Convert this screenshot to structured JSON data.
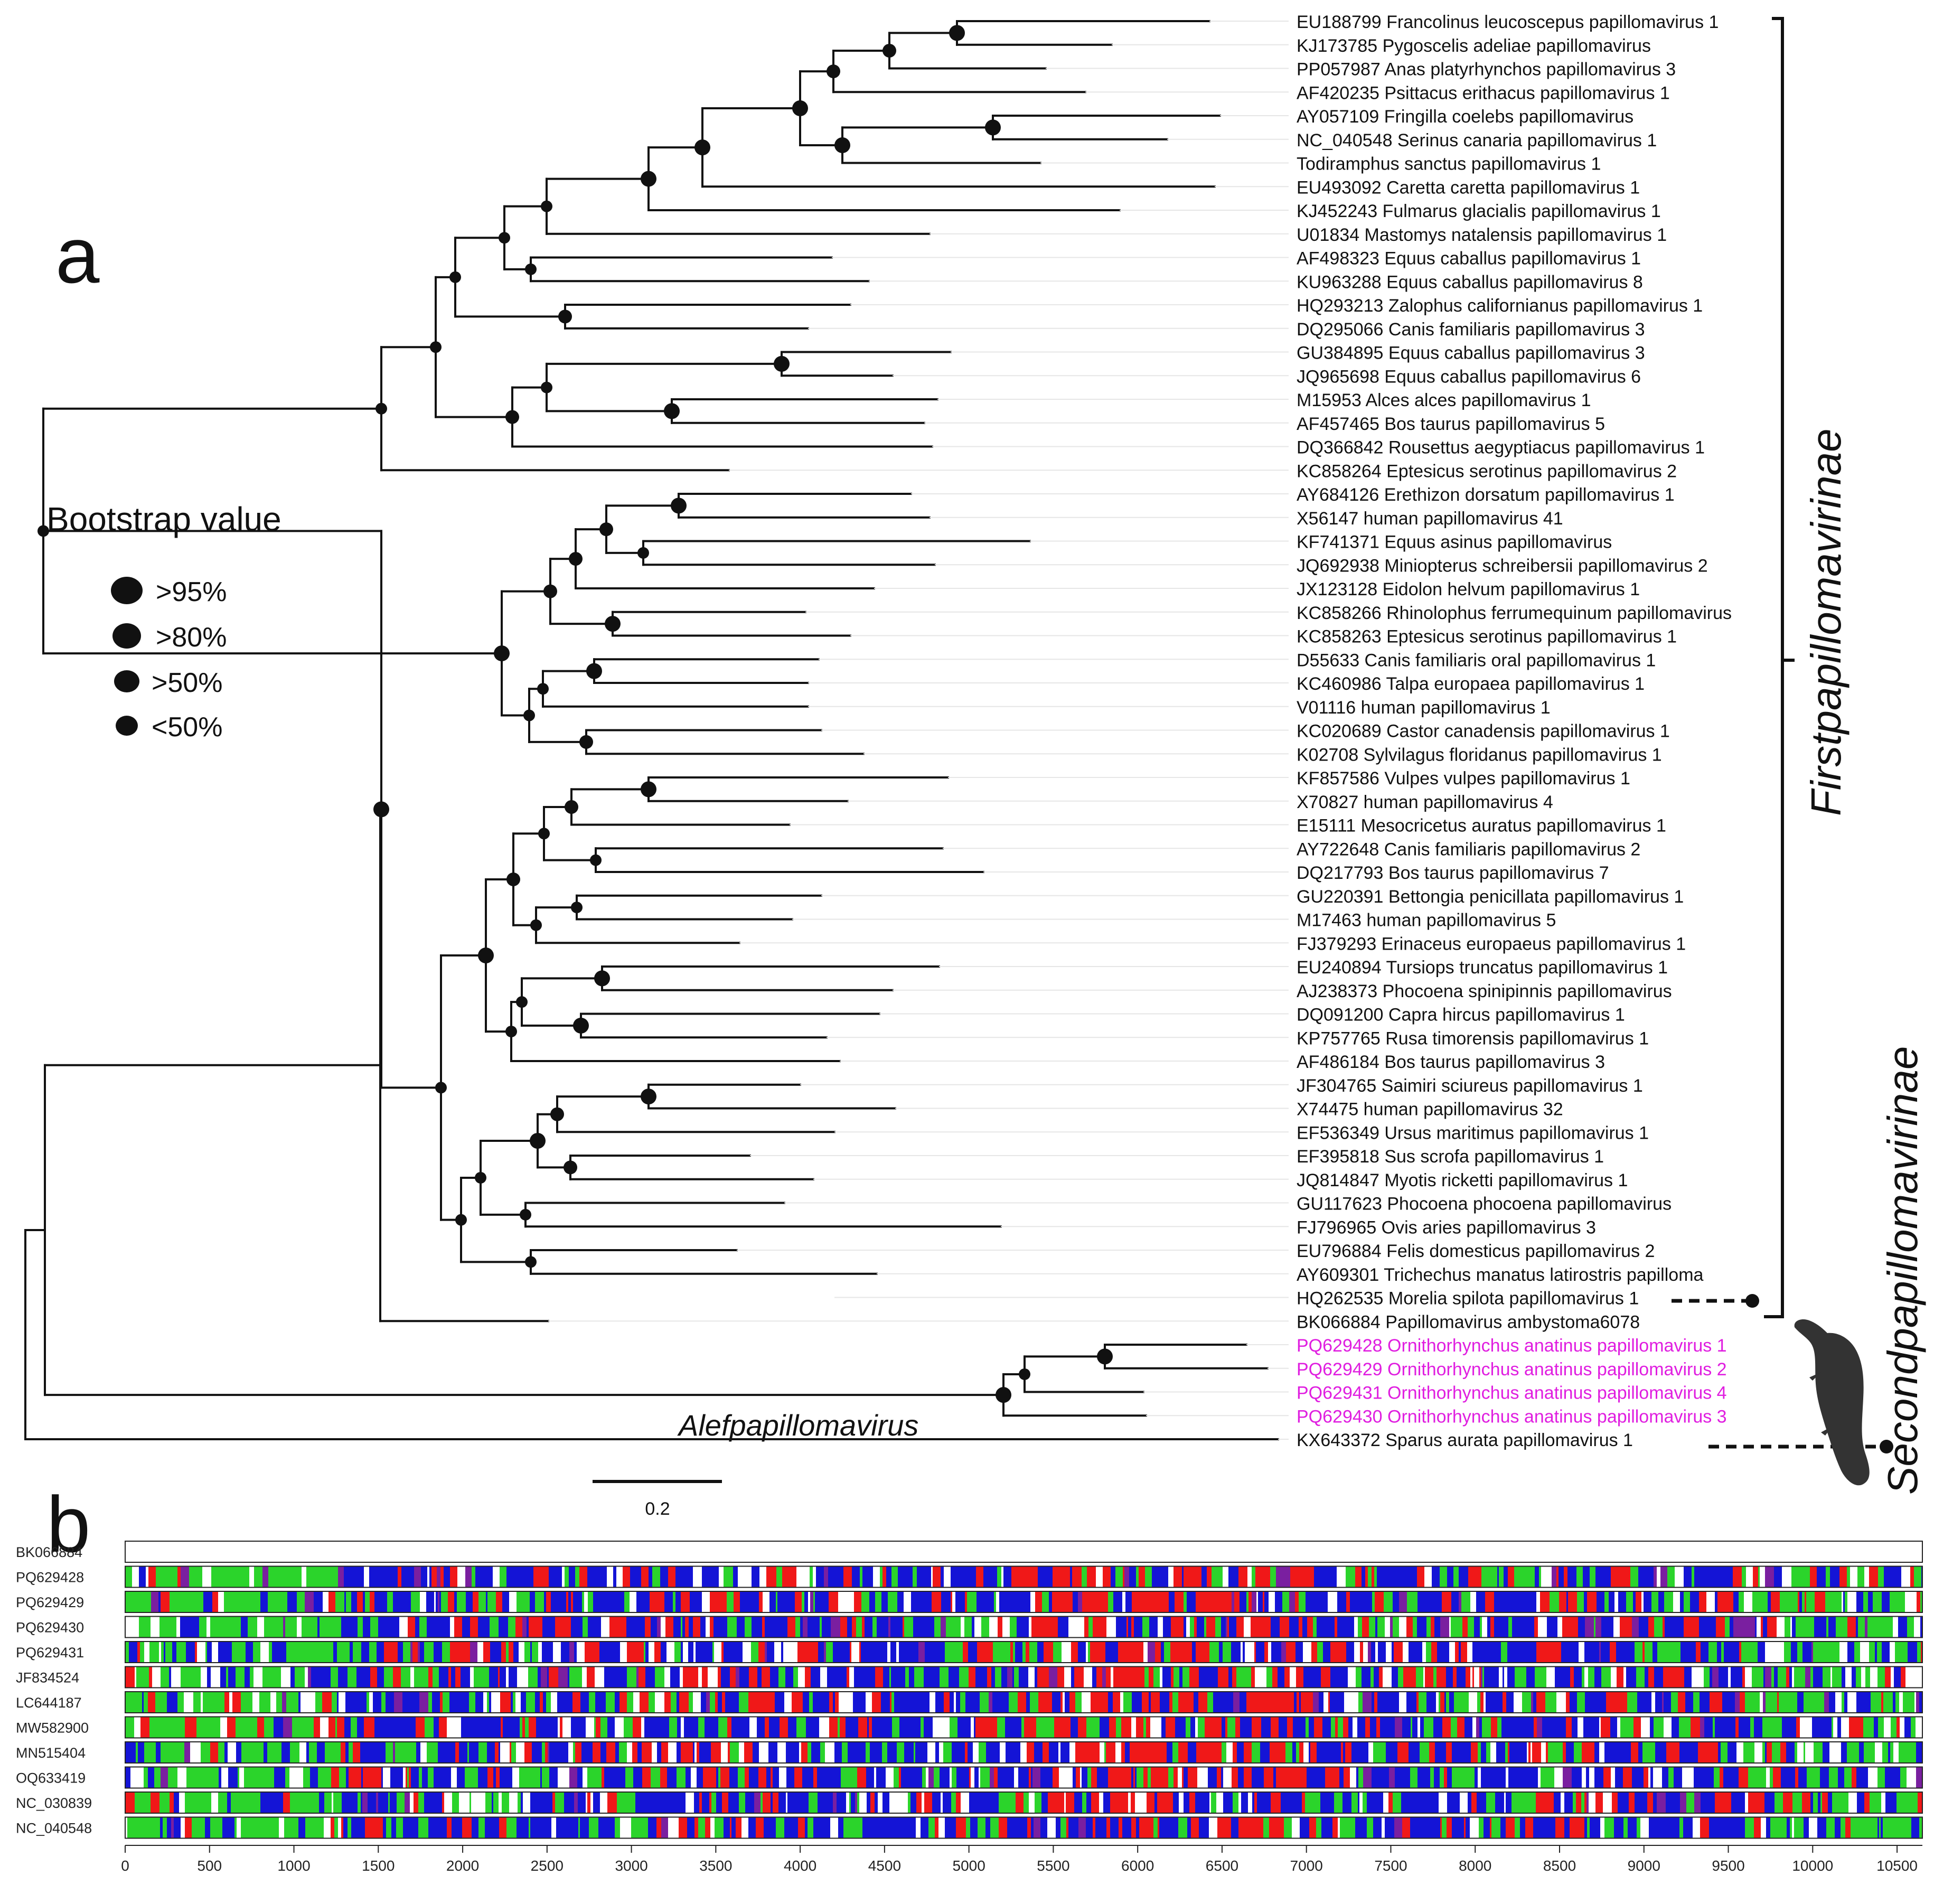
{
  "panel_a": {
    "label": "a",
    "legend": {
      "title": "Bootstrap value",
      "items": [
        ">95%",
        ">80%",
        ">50%",
        "<50%"
      ]
    },
    "taxa": [
      {
        "label": "EU188799 Francolinus leucoscepus papillomavirus 1",
        "highlight": false
      },
      {
        "label": "KJ173785 Pygoscelis adeliae papillomavirus",
        "highlight": false
      },
      {
        "label": "PP057987 Anas platyrhynchos papillomavirus 3",
        "highlight": false
      },
      {
        "label": "AF420235 Psittacus erithacus papillomavirus 1",
        "highlight": false
      },
      {
        "label": "AY057109 Fringilla coelebs papillomavirus",
        "highlight": false
      },
      {
        "label": "NC_040548 Serinus canaria papillomavirus 1",
        "highlight": false
      },
      {
        "label": "Todiramphus sanctus papillomavirus 1",
        "highlight": false
      },
      {
        "label": "EU493092 Caretta caretta papillomavirus 1",
        "highlight": false
      },
      {
        "label": "KJ452243 Fulmarus glacialis papillomavirus 1",
        "highlight": false
      },
      {
        "label": "U01834 Mastomys natalensis papillomavirus 1",
        "highlight": false
      },
      {
        "label": "AF498323 Equus caballus papillomavirus 1",
        "highlight": false
      },
      {
        "label": "KU963288 Equus caballus papillomavirus 8",
        "highlight": false
      },
      {
        "label": "HQ293213 Zalophus californianus papillomavirus 1",
        "highlight": false
      },
      {
        "label": "DQ295066 Canis familiaris papillomavirus 3",
        "highlight": false
      },
      {
        "label": "GU384895 Equus caballus papillomavirus 3",
        "highlight": false
      },
      {
        "label": "JQ965698 Equus caballus papillomavirus 6",
        "highlight": false
      },
      {
        "label": "M15953 Alces alces papillomavirus 1",
        "highlight": false
      },
      {
        "label": "AF457465 Bos taurus papillomavirus 5",
        "highlight": false
      },
      {
        "label": "DQ366842 Rousettus aegyptiacus papillomavirus 1",
        "highlight": false
      },
      {
        "label": "KC858264 Eptesicus serotinus papillomavirus 2",
        "highlight": false
      },
      {
        "label": "AY684126 Erethizon dorsatum papillomavirus 1",
        "highlight": false
      },
      {
        "label": "X56147 human papillomavirus 41",
        "highlight": false
      },
      {
        "label": "KF741371 Equus asinus papillomavirus",
        "highlight": false
      },
      {
        "label": "JQ692938 Miniopterus schreibersii papillomavirus 2",
        "highlight": false
      },
      {
        "label": "JX123128 Eidolon helvum papillomavirus 1",
        "highlight": false
      },
      {
        "label": "KC858266 Rhinolophus ferrumequinum papillomavirus",
        "highlight": false
      },
      {
        "label": "KC858263 Eptesicus serotinus papillomavirus 1",
        "highlight": false
      },
      {
        "label": "D55633 Canis familiaris oral papillomavirus 1",
        "highlight": false
      },
      {
        "label": "KC460986 Talpa europaea papillomavirus 1",
        "highlight": false
      },
      {
        "label": "V01116 human papillomavirus 1",
        "highlight": false
      },
      {
        "label": "KC020689 Castor canadensis papillomavirus 1",
        "highlight": false
      },
      {
        "label": "K02708 Sylvilagus floridanus papillomavirus 1",
        "highlight": false
      },
      {
        "label": "KF857586 Vulpes vulpes papillomavirus 1",
        "highlight": false
      },
      {
        "label": "X70827 human papillomavirus 4",
        "highlight": false
      },
      {
        "label": "E15111 Mesocricetus auratus papillomavirus 1",
        "highlight": false
      },
      {
        "label": "AY722648 Canis familiaris papillomavirus 2",
        "highlight": false
      },
      {
        "label": "DQ217793 Bos taurus papillomavirus 7",
        "highlight": false
      },
      {
        "label": "GU220391 Bettongia penicillata papillomavirus 1",
        "highlight": false
      },
      {
        "label": "M17463 human papillomavirus 5",
        "highlight": false
      },
      {
        "label": "FJ379293 Erinaceus europaeus papillomavirus 1",
        "highlight": false
      },
      {
        "label": "EU240894 Tursiops truncatus papillomavirus 1",
        "highlight": false
      },
      {
        "label": "AJ238373 Phocoena spinipinnis papillomavirus",
        "highlight": false
      },
      {
        "label": "DQ091200 Capra hircus papillomavirus 1",
        "highlight": false
      },
      {
        "label": "KP757765 Rusa timorensis papillomavirus 1",
        "highlight": false
      },
      {
        "label": "AF486184 Bos taurus papillomavirus 3",
        "highlight": false
      },
      {
        "label": "JF304765 Saimiri sciureus papillomavirus 1",
        "highlight": false
      },
      {
        "label": "X74475 human papillomavirus 32",
        "highlight": false
      },
      {
        "label": "EF536349 Ursus maritimus papillomavirus 1",
        "highlight": false
      },
      {
        "label": "EF395818 Sus scrofa papillomavirus 1",
        "highlight": false
      },
      {
        "label": "JQ814847 Myotis ricketti papillomavirus 1",
        "highlight": false
      },
      {
        "label": "GU117623 Phocoena phocoena papillomavirus",
        "highlight": false
      },
      {
        "label": "FJ796965 Ovis aries papillomavirus 3",
        "highlight": false
      },
      {
        "label": "EU796884 Felis domesticus papillomavirus 2",
        "highlight": false
      },
      {
        "label": "AY609301 Trichechus manatus latirostris papilloma",
        "highlight": false
      },
      {
        "label": "HQ262535 Morelia spilota papillomavirus 1",
        "highlight": false
      },
      {
        "label": "BK066884 Papillomavirus ambystoma6078",
        "highlight": false
      },
      {
        "label": "PQ629428 Ornithorhynchus anatinus papillomavirus 1",
        "highlight": true
      },
      {
        "label": "PQ629429 Ornithorhynchus anatinus papillomavirus 2",
        "highlight": true
      },
      {
        "label": "PQ629431 Ornithorhynchus anatinus papillomavirus 4",
        "highlight": true
      },
      {
        "label": "PQ629430 Ornithorhynchus anatinus papillomavirus 3",
        "highlight": true
      },
      {
        "label": "KX643372 Sparus aurata papillomavirus 1",
        "highlight": false
      }
    ],
    "clades": {
      "first": "Firstpapillomavirinae",
      "second": "Secondpapillomavirinae",
      "alef": "Alefpapillomavirus"
    },
    "scale_bar": "0.2"
  },
  "panel_b": {
    "label": "b",
    "sequences": [
      "BK066884",
      "PQ629428",
      "PQ629429",
      "PQ629430",
      "PQ629431",
      "JF834524",
      "LC644187",
      "MW582900",
      "MN515404",
      "OQ633419",
      "NC_030839",
      "NC_040548"
    ],
    "axis": {
      "min": 0,
      "max": 10650,
      "ticks": [
        0,
        500,
        1000,
        1500,
        2000,
        2500,
        3000,
        3500,
        4000,
        4500,
        5000,
        5500,
        6000,
        6500,
        7000,
        7500,
        8000,
        8500,
        9000,
        9500,
        10000,
        10500
      ]
    }
  },
  "colors": {
    "text": "#111111",
    "highlight": "#e01ee0",
    "green": "#2bd42b",
    "blue": "#1414d6",
    "red": "#f01818",
    "purple": "#7a1fa0"
  }
}
